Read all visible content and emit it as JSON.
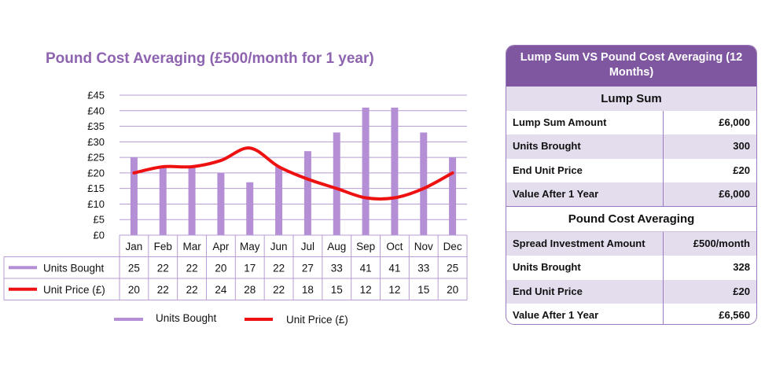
{
  "chart_data": {
    "type": "bar+line",
    "title": "Pound Cost Averaging (£500/month for 1 year)",
    "categories": [
      "Jan",
      "Feb",
      "Mar",
      "Apr",
      "May",
      "Jun",
      "Jul",
      "Aug",
      "Sep",
      "Oct",
      "Nov",
      "Dec"
    ],
    "series": [
      {
        "name": "Units Bought",
        "type": "bar",
        "color": "#b48fd6",
        "values": [
          25,
          22,
          22,
          20,
          17,
          22,
          27,
          33,
          41,
          41,
          33,
          25
        ]
      },
      {
        "name": "Unit Price (£)",
        "type": "line",
        "color": "#ee1111",
        "values": [
          20,
          22,
          22,
          24,
          28,
          22,
          18,
          15,
          12,
          12,
          15,
          20
        ]
      }
    ],
    "y_ticks": [
      "£0",
      "£5",
      "£10",
      "£15",
      "£20",
      "£25",
      "£30",
      "£35",
      "£40",
      "£45"
    ],
    "ylim": [
      0,
      45
    ],
    "grid": true,
    "legend_position": "bottom"
  },
  "comparison": {
    "title": "Lump Sum VS Pound Cost Averaging (12 Months)",
    "lump_sum": {
      "heading": "Lump Sum",
      "rows": [
        {
          "label": "Lump Sum Amount",
          "value": "£6,000"
        },
        {
          "label": "Units Brought",
          "value": "300"
        },
        {
          "label": "End Unit Price",
          "value": "£20"
        },
        {
          "label": "Value After 1 Year",
          "value": "£6,000"
        }
      ]
    },
    "pca": {
      "heading": "Pound Cost Averaging",
      "rows": [
        {
          "label": "Spread Investment Amount",
          "value": "£500/month"
        },
        {
          "label": "Units Brought",
          "value": "328"
        },
        {
          "label": "End Unit Price",
          "value": "£20"
        },
        {
          "label": "Value After 1 Year",
          "value": "£6,560"
        }
      ]
    }
  }
}
